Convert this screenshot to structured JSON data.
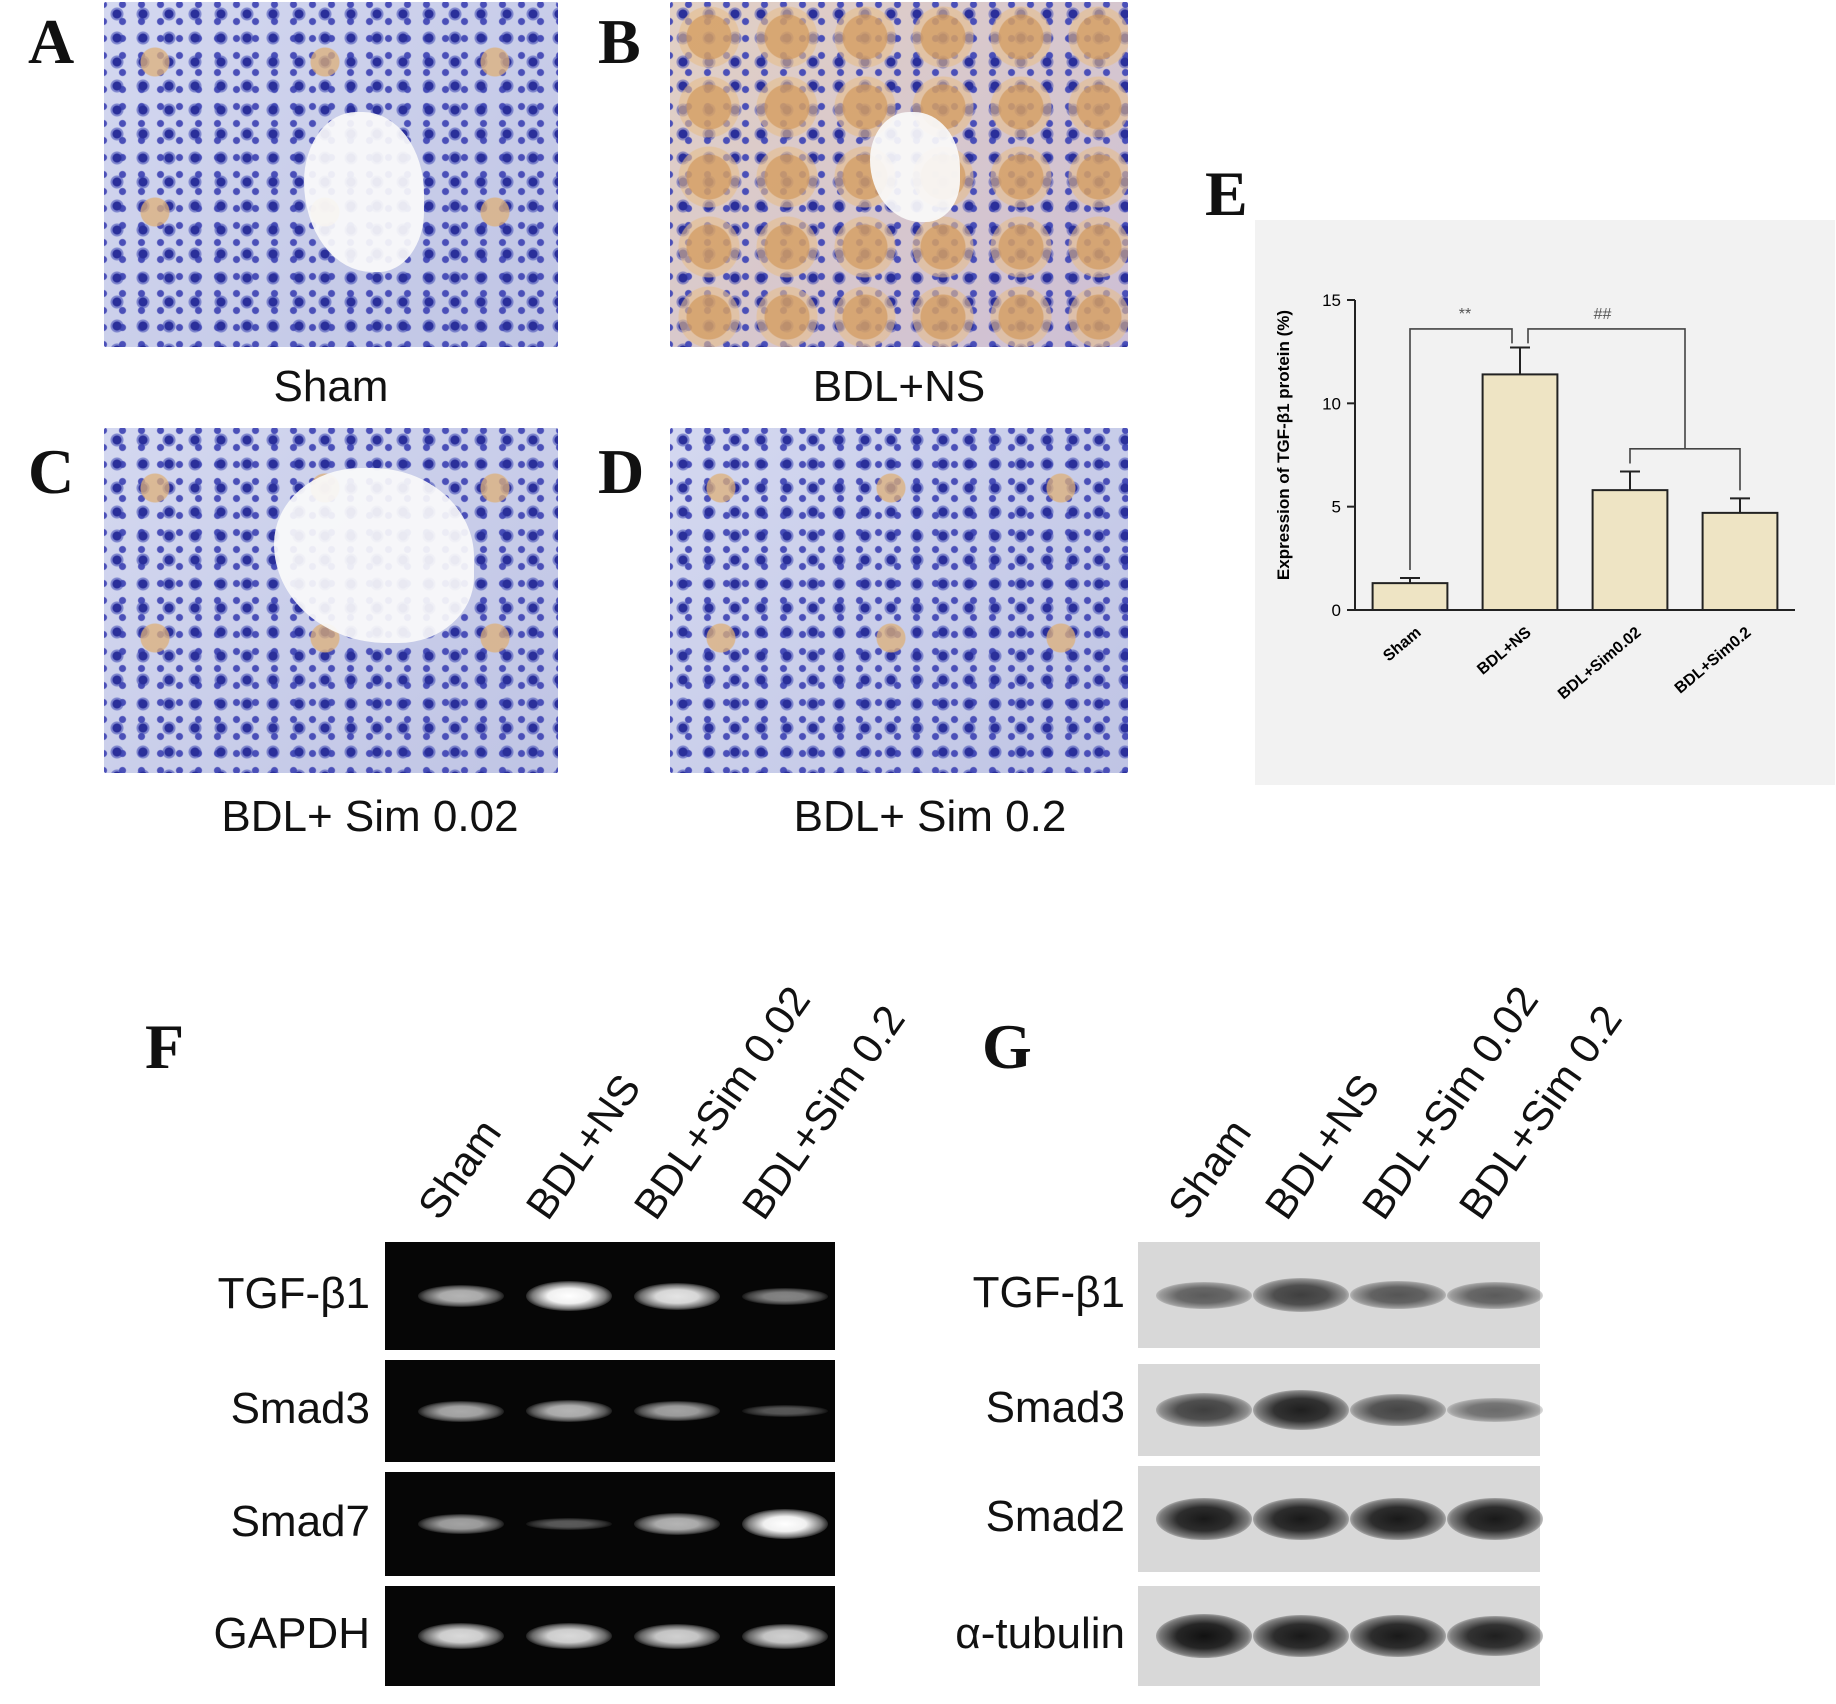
{
  "panels": {
    "A": {
      "letter": "A",
      "caption": "Sham"
    },
    "B": {
      "letter": "B",
      "caption": "BDL+NS"
    },
    "C": {
      "letter": "C",
      "caption": "BDL+ Sim 0.02"
    },
    "D": {
      "letter": "D",
      "caption": "BDL+ Sim 0.2"
    },
    "E": {
      "letter": "E"
    },
    "F": {
      "letter": "F"
    },
    "G": {
      "letter": "G"
    }
  },
  "chart_data": {
    "type": "bar",
    "title": "",
    "ylabel": "Expression of TGF-β1 protein (%)",
    "xlabel": "",
    "categories": [
      "Sham",
      "BDL+NS",
      "BDL+Sim0.02",
      "BDL+Sim0.2"
    ],
    "values": [
      1.3,
      11.4,
      5.8,
      4.7
    ],
    "errors": [
      0.25,
      1.3,
      0.9,
      0.7
    ],
    "ylim": [
      0,
      15
    ],
    "yticks": [
      0,
      5,
      10,
      15
    ],
    "bar_color": "#eee4c4",
    "grid": false,
    "significance": [
      {
        "label": "**",
        "between": [
          "Sham",
          "BDL+NS"
        ]
      },
      {
        "label": "##",
        "between": [
          "BDL+NS",
          "BDL+Sim0.02 / BDL+Sim0.2"
        ]
      }
    ]
  },
  "gel_F": {
    "lanes": [
      "Sham",
      "BDL+NS",
      "BDL+Sim 0.02",
      "BDL+Sim 0.2"
    ],
    "rows": [
      {
        "label": "TGF-β1",
        "intensities": [
          0.6,
          1.0,
          0.85,
          0.35
        ]
      },
      {
        "label": "Smad3",
        "intensities": [
          0.55,
          0.6,
          0.5,
          0.1
        ]
      },
      {
        "label": "Smad7",
        "intensities": [
          0.5,
          0.12,
          0.6,
          1.0
        ]
      },
      {
        "label": "GAPDH",
        "intensities": [
          0.8,
          0.8,
          0.75,
          0.75
        ]
      }
    ]
  },
  "blot_G": {
    "lanes": [
      "Sham",
      "BDL+NS",
      "BDL+Sim 0.02",
      "BDL+Sim 0.2"
    ],
    "rows": [
      {
        "label": "TGF-β1",
        "intensities": [
          0.5,
          0.7,
          0.55,
          0.5
        ]
      },
      {
        "label": "Smad3",
        "intensities": [
          0.7,
          0.9,
          0.65,
          0.4
        ]
      },
      {
        "label": "Smad2",
        "intensities": [
          0.95,
          0.95,
          0.95,
          0.95
        ]
      },
      {
        "label": "α-tubulin",
        "intensities": [
          1.0,
          0.95,
          0.95,
          0.9
        ]
      }
    ]
  }
}
